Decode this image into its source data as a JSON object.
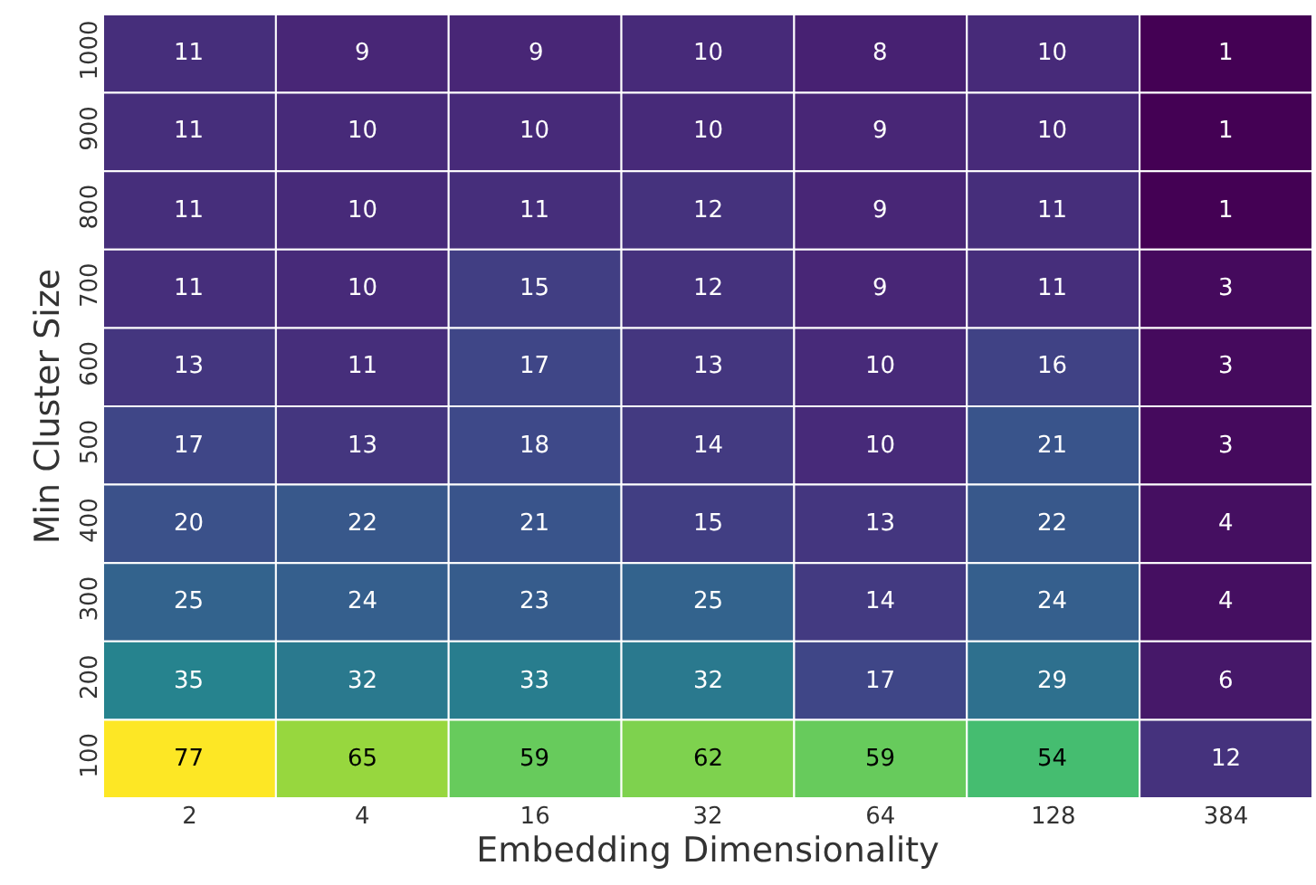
{
  "chart_data": {
    "type": "heatmap",
    "xlabel": "Embedding Dimensionality",
    "ylabel": "Min Cluster Size",
    "categories": [
      "2",
      "4",
      "16",
      "32",
      "64",
      "128",
      "384"
    ],
    "y_categories": [
      "1000",
      "900",
      "800",
      "700",
      "600",
      "500",
      "400",
      "300",
      "200",
      "100"
    ],
    "cells": [
      [
        11,
        9,
        9,
        10,
        8,
        10,
        1
      ],
      [
        11,
        10,
        10,
        10,
        9,
        10,
        1
      ],
      [
        11,
        10,
        11,
        12,
        9,
        11,
        1
      ],
      [
        11,
        10,
        15,
        12,
        9,
        11,
        3
      ],
      [
        13,
        11,
        17,
        13,
        10,
        16,
        3
      ],
      [
        17,
        13,
        18,
        14,
        10,
        21,
        3
      ],
      [
        20,
        22,
        21,
        15,
        13,
        22,
        4
      ],
      [
        25,
        24,
        23,
        25,
        14,
        24,
        4
      ],
      [
        35,
        32,
        33,
        32,
        17,
        29,
        6
      ],
      [
        77,
        65,
        59,
        62,
        59,
        54,
        12
      ]
    ],
    "data_labels": true
  }
}
